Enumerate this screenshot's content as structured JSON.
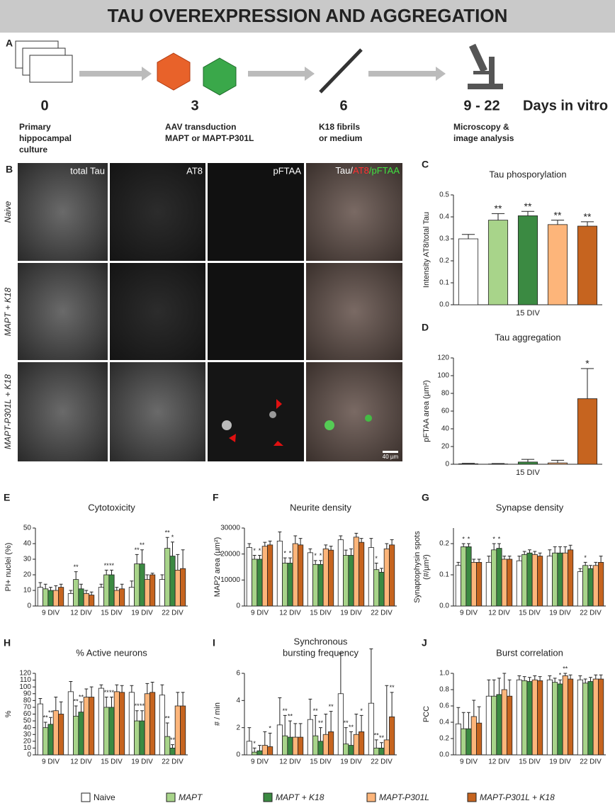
{
  "header": {
    "title": "TAU OVEREXPRESSION AND AGGREGATION"
  },
  "panel_a": {
    "label": "A",
    "unit": "Days in vitro",
    "steps": [
      {
        "day": "0",
        "lines": [
          "Primary",
          "hippocampal",
          "culture"
        ]
      },
      {
        "day": "3",
        "lines": [
          "AAV transduction",
          "MAPT or MAPT-P301L"
        ]
      },
      {
        "day": "6",
        "lines": [
          "K18 fibrils",
          "or medium"
        ]
      },
      {
        "day": "9 - 22",
        "lines": [
          "Microscopy &",
          "image analysis"
        ]
      }
    ]
  },
  "panel_b": {
    "label": "B",
    "columns": [
      "total Tau",
      "AT8",
      "pFTAA"
    ],
    "merge": [
      "Tau/",
      "AT8",
      "/pFTAA"
    ],
    "rows": [
      "Naive",
      "MAPT + K18",
      "MAPT-P301L + K18"
    ],
    "scale_bar": "40 µm"
  },
  "legend": [
    {
      "name": "Naive",
      "color": "#ffffff"
    },
    {
      "name": "MAPT",
      "color": "#a8d48a"
    },
    {
      "name": "MAPT + K18",
      "color": "#3b8a42"
    },
    {
      "name": "MAPT-P301L",
      "color": "#fdb57a"
    },
    {
      "name": "MAPT-P301L + K18",
      "color": "#c6641f"
    }
  ],
  "chart_data": [
    {
      "panel": "C",
      "type": "bar",
      "title": "Tau phosporylation",
      "ylabel": [
        "Intensity AT8/total Tau"
      ],
      "xlabel": "15 DIV",
      "values": [
        0.3,
        0.385,
        0.405,
        0.365,
        0.358
      ],
      "errors": [
        0.02,
        0.03,
        0.02,
        0.02,
        0.02
      ],
      "sig": [
        null,
        "**",
        "**",
        "**",
        "**"
      ],
      "ylim": [
        0,
        0.5
      ],
      "yticks": [
        {
          "value": 0,
          "label": "0.0"
        },
        0.1,
        0.2,
        0.3,
        0.4,
        0.5
      ]
    },
    {
      "panel": "D",
      "type": "bar",
      "title": "Tau aggregation",
      "ylabel": [
        "pFTAA area (µm²)"
      ],
      "xlabel": "15 DIV",
      "values": [
        0.5,
        0.3,
        2.5,
        1.5,
        74
      ],
      "errors": [
        0.5,
        0.5,
        3,
        3,
        34
      ],
      "sig": [
        null,
        null,
        null,
        null,
        "*"
      ],
      "ylim": [
        0,
        120
      ],
      "yticks": [
        0,
        20,
        40,
        60,
        80,
        100,
        120
      ]
    },
    {
      "panel": "E",
      "type": "grouped_bar",
      "title": "Cytotoxicity",
      "ylabel": [
        "PI+ nuclei (%)"
      ],
      "categories": [
        "9 DIV",
        "12 DIV",
        "15 DIV",
        "19 DIV",
        "22 DIV"
      ],
      "ylim": [
        0,
        50
      ],
      "yticks": [
        0,
        10,
        20,
        30,
        40,
        50
      ],
      "series": [
        {
          "values": [
            12,
            8,
            12,
            12,
            17
          ],
          "errors": [
            3,
            2,
            2,
            4,
            3
          ]
        },
        {
          "values": [
            11,
            17,
            20,
            27,
            37
          ],
          "errors": [
            3,
            5,
            3,
            6,
            7
          ],
          "sig": [
            null,
            "**",
            "**",
            "**",
            "**"
          ]
        },
        {
          "values": [
            10,
            11,
            20,
            27,
            32
          ],
          "errors": [
            2,
            3,
            3,
            9,
            9
          ],
          "sig": [
            null,
            null,
            "**",
            "**",
            "*"
          ]
        },
        {
          "values": [
            10,
            8,
            10,
            17,
            23
          ],
          "errors": [
            3,
            2,
            2,
            3,
            10
          ]
        },
        {
          "values": [
            12,
            7,
            11,
            20,
            24
          ],
          "errors": [
            2,
            2,
            3,
            1,
            12
          ]
        }
      ]
    },
    {
      "panel": "F",
      "type": "grouped_bar",
      "title": "Neurite density",
      "ylabel": [
        "MAP2 area (µm²)"
      ],
      "categories": [
        "9 DIV",
        "12 DIV",
        "15 DIV",
        "19 DIV",
        "22 DIV"
      ],
      "ylim": [
        0,
        30000
      ],
      "yticks": [
        0,
        10000,
        20000,
        30000
      ],
      "series": [
        {
          "values": [
            22500,
            25000,
            20500,
            25500,
            22500
          ],
          "errors": [
            1500,
            3500,
            1500,
            1500,
            3500
          ]
        },
        {
          "values": [
            18000,
            16500,
            16000,
            19500,
            14000
          ],
          "errors": [
            1500,
            2000,
            1500,
            2000,
            2500
          ],
          "sig": [
            "*",
            "*",
            "*",
            null,
            "*"
          ]
        },
        {
          "values": [
            18000,
            16500,
            16000,
            19500,
            13000
          ],
          "errors": [
            1500,
            2000,
            1500,
            2500,
            1500
          ],
          "sig": [
            "*",
            "*",
            "*",
            null,
            null
          ]
        },
        {
          "values": [
            23000,
            24000,
            22000,
            26500,
            22000
          ],
          "errors": [
            1500,
            3000,
            1500,
            1500,
            2000
          ]
        },
        {
          "values": [
            23500,
            23500,
            21500,
            24500,
            23500
          ],
          "errors": [
            1500,
            2500,
            1500,
            1500,
            2000
          ]
        }
      ]
    },
    {
      "panel": "G",
      "type": "grouped_bar",
      "title": "Synapse density",
      "ylabel": [
        "Synaptophysin spots",
        "(#/µm²)"
      ],
      "categories": [
        "9 DIV",
        "12 DIV",
        "15 DIV",
        "19 DIV",
        "22 DIV"
      ],
      "ylim": [
        0,
        0.25
      ],
      "yticks": [
        {
          "value": 0,
          "label": "0.0"
        },
        0.1,
        0.2
      ],
      "series": [
        {
          "values": [
            0.13,
            0.14,
            0.145,
            0.16,
            0.11
          ],
          "errors": [
            0.01,
            0.02,
            0.015,
            0.02,
            0.01
          ]
        },
        {
          "values": [
            0.19,
            0.18,
            0.165,
            0.17,
            0.13
          ],
          "errors": [
            0.01,
            0.02,
            0.01,
            0.02,
            0.01
          ],
          "sig": [
            "*",
            "*",
            null,
            null,
            "*"
          ]
        },
        {
          "values": [
            0.19,
            0.185,
            0.17,
            0.17,
            0.12
          ],
          "errors": [
            0.01,
            0.015,
            0.01,
            0.02,
            0.01
          ],
          "sig": [
            "*",
            "*",
            null,
            null,
            null
          ]
        },
        {
          "values": [
            0.14,
            0.15,
            0.165,
            0.17,
            0.13
          ],
          "errors": [
            0.01,
            0.01,
            0.01,
            0.02,
            0.01
          ]
        },
        {
          "values": [
            0.14,
            0.15,
            0.16,
            0.18,
            0.14
          ],
          "errors": [
            0.01,
            0.01,
            0.01,
            0.015,
            0.02
          ]
        }
      ]
    },
    {
      "panel": "H",
      "type": "grouped_bar",
      "title": "% Active neurons",
      "ylabel": [
        "%"
      ],
      "categories": [
        "9 DIV",
        "12 DIV",
        "15 DIV",
        "19 DIV",
        "22 DIV"
      ],
      "ylim": [
        0,
        120
      ],
      "yticks": [
        0,
        10,
        20,
        30,
        40,
        50,
        60,
        70,
        80,
        90,
        100,
        110,
        120
      ],
      "series": [
        {
          "values": [
            75,
            93,
            98,
            92,
            88
          ],
          "errors": [
            8,
            15,
            5,
            10,
            15
          ]
        },
        {
          "values": [
            40,
            57,
            70,
            50,
            27
          ],
          "errors": [
            8,
            15,
            15,
            15,
            20
          ],
          "sig": [
            "**",
            "**",
            "**",
            "**",
            "**"
          ]
        },
        {
          "values": [
            45,
            63,
            70,
            50,
            10
          ],
          "errors": [
            10,
            15,
            15,
            15,
            5
          ],
          "sig": [
            "**",
            "**",
            "**",
            "**",
            "**"
          ]
        },
        {
          "values": [
            65,
            85,
            93,
            90,
            72
          ],
          "errors": [
            20,
            12,
            10,
            15,
            20
          ]
        },
        {
          "values": [
            60,
            85,
            92,
            92,
            72
          ],
          "errors": [
            18,
            15,
            10,
            15,
            20
          ]
        }
      ]
    },
    {
      "panel": "I",
      "type": "grouped_bar",
      "title": [
        "Synchronous",
        "bursting frequency"
      ],
      "ylabel": [
        "# / min"
      ],
      "categories": [
        "9 DIV",
        "12 DIV",
        "15 DIV",
        "19 DIV",
        "22 DIV"
      ],
      "ylim": [
        0,
        6
      ],
      "yticks": [
        0,
        2,
        4,
        6
      ],
      "series": [
        {
          "values": [
            1.0,
            2.2,
            2.6,
            4.5,
            3.8
          ],
          "errors": [
            1,
            2,
            1.5,
            3,
            4
          ]
        },
        {
          "values": [
            0.2,
            1.4,
            1.4,
            0.8,
            0.5
          ],
          "errors": [
            0.3,
            1.5,
            1.5,
            1.2,
            0.6
          ],
          "sig": [
            "*",
            "**",
            "**",
            "**",
            "**"
          ]
        },
        {
          "values": [
            0.3,
            1.3,
            1.0,
            0.7,
            0.5
          ],
          "errors": [
            0.4,
            1.2,
            1,
            1,
            0.4
          ],
          "sig": [
            null,
            "**",
            "**",
            "**",
            "**"
          ]
        },
        {
          "values": [
            0.7,
            1.3,
            1.5,
            1.5,
            1.1
          ],
          "errors": [
            1,
            1,
            1.5,
            1.5,
            4
          ]
        },
        {
          "values": [
            0.6,
            1.3,
            1.7,
            1.7,
            2.8
          ],
          "errors": [
            1,
            1,
            1.5,
            1.2,
            1.8
          ],
          "sig": [
            "*",
            null,
            "**",
            "*",
            "**"
          ]
        }
      ]
    },
    {
      "panel": "J",
      "type": "grouped_bar",
      "title": "Burst correlation",
      "ylabel": [
        "PCC"
      ],
      "categories": [
        "9 DIV",
        "12 DIV",
        "15 DIV",
        "19 DIV",
        "22 DIV"
      ],
      "ylim": [
        0,
        1.0
      ],
      "yticks": [
        {
          "value": 0,
          "label": "0.0"
        },
        0.2,
        0.4,
        0.6,
        0.8,
        {
          "value": 1,
          "label": "1.0"
        }
      ],
      "series": [
        {
          "values": [
            0.38,
            0.72,
            0.92,
            0.92,
            0.92
          ],
          "errors": [
            0.2,
            0.2,
            0.05,
            0.05,
            0.05
          ]
        },
        {
          "values": [
            0.32,
            0.72,
            0.91,
            0.89,
            0.88
          ],
          "errors": [
            0.2,
            0.2,
            0.05,
            0.05,
            0.05
          ]
        },
        {
          "values": [
            0.32,
            0.74,
            0.9,
            0.87,
            0.9
          ],
          "errors": [
            0.2,
            0.2,
            0.05,
            0.05,
            0.05
          ],
          "sig": [
            null,
            null,
            null,
            "*",
            null
          ]
        },
        {
          "values": [
            0.47,
            0.8,
            0.92,
            0.97,
            0.93
          ],
          "errors": [
            0.2,
            0.2,
            0.05,
            0.03,
            0.05
          ],
          "sig": [
            null,
            null,
            null,
            "**",
            null
          ]
        },
        {
          "values": [
            0.39,
            0.72,
            0.91,
            0.93,
            0.93
          ],
          "errors": [
            0.2,
            0.2,
            0.05,
            0.05,
            0.05
          ]
        }
      ]
    }
  ]
}
